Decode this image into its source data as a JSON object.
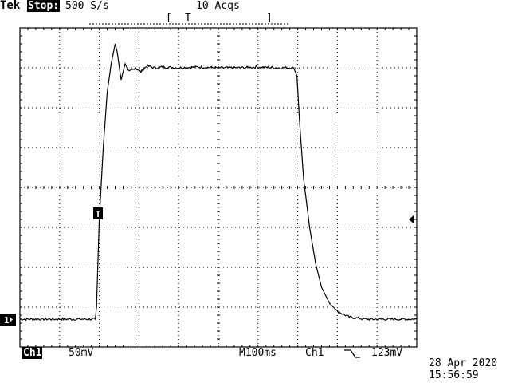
{
  "header": {
    "brand": "Tek",
    "run_state": "Stop:",
    "sample_rate": "500 S/s",
    "acquisitions": "10 Acqs",
    "trigger_window_left": "[",
    "trigger_window_mark": "T",
    "trigger_window_right": "]"
  },
  "footer": {
    "channel": "Ch1",
    "volts_per_div": "50mV",
    "timebase": "M100ms",
    "trigger_source": "Ch1",
    "trigger_slope_icon": "falling-edge-icon",
    "trigger_level": "123mV",
    "date": "28 Apr 2020",
    "time": "15:56:59"
  },
  "markers": {
    "channel_ground": "1",
    "trigger_point": "T"
  },
  "chart_data": {
    "type": "line",
    "grid": true,
    "x_divisions": 10,
    "y_divisions": 8,
    "xlim": [
      0,
      10
    ],
    "ylim": [
      -4,
      4
    ],
    "series": [
      {
        "x": [
          0,
          1.9,
          1.93,
          2.0,
          2.1,
          2.2,
          2.3,
          2.4,
          2.45,
          2.55,
          2.65,
          2.75,
          2.9,
          3.05,
          3.2,
          3.4,
          3.6,
          4.0,
          4.5,
          5.0,
          5.5,
          6.0,
          6.5,
          6.9,
          6.98,
          7.05,
          7.15,
          7.3,
          7.45,
          7.6,
          7.8,
          8.0,
          8.3,
          8.7,
          9.0,
          9.5,
          10.0
        ],
        "y": [
          -3.3,
          -3.3,
          -3.0,
          -0.8,
          1.0,
          2.4,
          3.1,
          3.6,
          3.4,
          2.7,
          3.1,
          2.9,
          3.0,
          2.9,
          3.05,
          3.0,
          3.02,
          3.0,
          3.02,
          3.0,
          3.0,
          3.02,
          3.0,
          3.0,
          2.8,
          1.6,
          0.2,
          -1.0,
          -1.9,
          -2.5,
          -2.9,
          -3.1,
          -3.25,
          -3.3,
          -3.3,
          -3.3,
          -3.3
        ]
      }
    ]
  }
}
